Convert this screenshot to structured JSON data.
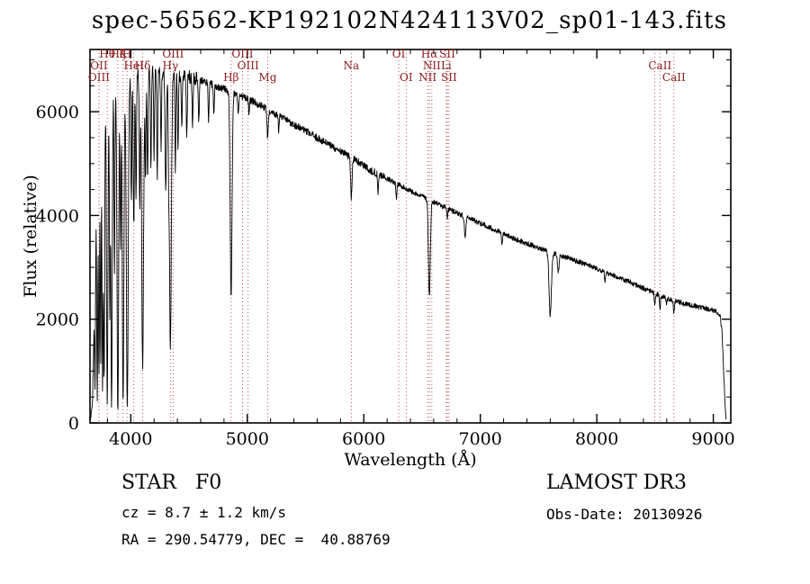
{
  "title": "spec-56562-KP192102N424113V02_sp01-143.fits",
  "chart_data": {
    "type": "line",
    "title": "spec-56562-KP192102N424113V02_sp01-143.fits",
    "xlabel": "Wavelength (Å)",
    "ylabel": "Flux (relative)",
    "xlim": [
      3650,
      9150
    ],
    "ylim": [
      0,
      7200
    ],
    "xticks": [
      4000,
      5000,
      6000,
      7000,
      8000,
      9000
    ],
    "yticks": [
      0,
      2000,
      4000,
      6000
    ],
    "x_minor_step": 200,
    "y_minor_step": 500,
    "line_color": "#000000",
    "spectral_line_color": "#aa4444",
    "spectral_label_color": "#8b1a1a",
    "continuum": [
      [
        3655,
        80
      ],
      [
        3672,
        400
      ],
      [
        3690,
        2600
      ],
      [
        3705,
        5200
      ],
      [
        3720,
        6100
      ],
      [
        3760,
        6400
      ],
      [
        3800,
        6500
      ],
      [
        3850,
        6550
      ],
      [
        3900,
        6600
      ],
      [
        3960,
        6650
      ],
      [
        4020,
        6700
      ],
      [
        4080,
        6720
      ],
      [
        4150,
        6750
      ],
      [
        4250,
        6780
      ],
      [
        4350,
        6730
      ],
      [
        4450,
        6700
      ],
      [
        4550,
        6650
      ],
      [
        4650,
        6570
      ],
      [
        4750,
        6480
      ],
      [
        4850,
        6400
      ],
      [
        4950,
        6300
      ],
      [
        5050,
        6200
      ],
      [
        5150,
        6080
      ],
      [
        5250,
        5950
      ],
      [
        5350,
        5820
      ],
      [
        5450,
        5690
      ],
      [
        5550,
        5560
      ],
      [
        5650,
        5430
      ],
      [
        5750,
        5300
      ],
      [
        5850,
        5170
      ],
      [
        5950,
        5040
      ],
      [
        6050,
        4880
      ],
      [
        6150,
        4770
      ],
      [
        6250,
        4650
      ],
      [
        6350,
        4530
      ],
      [
        6450,
        4420
      ],
      [
        6550,
        4310
      ],
      [
        6650,
        4200
      ],
      [
        6750,
        4100
      ],
      [
        6850,
        4000
      ],
      [
        6950,
        3900
      ],
      [
        7050,
        3800
      ],
      [
        7150,
        3700
      ],
      [
        7250,
        3600
      ],
      [
        7350,
        3500
      ],
      [
        7450,
        3420
      ],
      [
        7550,
        3340
      ],
      [
        7650,
        3260
      ],
      [
        7750,
        3180
      ],
      [
        7850,
        3100
      ],
      [
        7950,
        3020
      ],
      [
        8050,
        2930
      ],
      [
        8150,
        2840
      ],
      [
        8250,
        2750
      ],
      [
        8350,
        2650
      ],
      [
        8450,
        2550
      ],
      [
        8550,
        2450
      ],
      [
        8650,
        2370
      ],
      [
        8750,
        2300
      ],
      [
        8850,
        2250
      ],
      [
        8950,
        2200
      ],
      [
        9020,
        2150
      ],
      [
        9060,
        2050
      ],
      [
        9075,
        1750
      ],
      [
        9090,
        900
      ],
      [
        9102,
        300
      ],
      [
        9110,
        60
      ]
    ],
    "absorption_lines": [
      [
        3693,
        600,
        4
      ],
      [
        3712,
        400,
        5
      ],
      [
        3727,
        900,
        5
      ],
      [
        3742,
        1100,
        4
      ],
      [
        3758,
        600,
        5
      ],
      [
        3771,
        800,
        5
      ],
      [
        3798,
        350,
        6
      ],
      [
        3820,
        2200,
        4
      ],
      [
        3835,
        300,
        6
      ],
      [
        3860,
        2800,
        4
      ],
      [
        3889,
        200,
        7
      ],
      [
        3912,
        3300,
        4
      ],
      [
        3934,
        400,
        7
      ],
      [
        3970,
        300,
        8
      ],
      [
        4005,
        4300,
        4
      ],
      [
        4026,
        3900,
        5
      ],
      [
        4045,
        4400,
        4
      ],
      [
        4077,
        4100,
        4
      ],
      [
        4102,
        1100,
        8
      ],
      [
        4126,
        4700,
        4
      ],
      [
        4144,
        4600,
        4
      ],
      [
        4173,
        4900,
        4
      ],
      [
        4200,
        5100,
        4
      ],
      [
        4227,
        4700,
        4
      ],
      [
        4260,
        5200,
        4
      ],
      [
        4300,
        4600,
        6
      ],
      [
        4326,
        4900,
        4
      ],
      [
        4340,
        1400,
        8
      ],
      [
        4383,
        4900,
        4
      ],
      [
        4405,
        5300,
        4
      ],
      [
        4438,
        5600,
        4
      ],
      [
        4481,
        5500,
        4
      ],
      [
        4530,
        5700,
        4
      ],
      [
        4584,
        5800,
        4
      ],
      [
        4668,
        5800,
        4
      ],
      [
        4713,
        5900,
        4
      ],
      [
        4861,
        2450,
        8
      ],
      [
        4922,
        5900,
        4
      ],
      [
        5015,
        5950,
        4
      ],
      [
        5175,
        5500,
        6
      ],
      [
        5270,
        5650,
        4
      ],
      [
        5893,
        4350,
        6
      ],
      [
        6122,
        4450,
        4
      ],
      [
        6280,
        4350,
        4
      ],
      [
        6563,
        2450,
        8
      ],
      [
        6717,
        3950,
        4
      ],
      [
        6870,
        3600,
        6
      ],
      [
        7186,
        3450,
        4
      ],
      [
        7600,
        2080,
        10
      ],
      [
        7670,
        2900,
        7
      ],
      [
        8070,
        2750,
        4
      ],
      [
        8498,
        2320,
        5
      ],
      [
        8542,
        2220,
        5
      ],
      [
        8598,
        2320,
        4
      ],
      [
        8662,
        2120,
        5
      ],
      [
        8750,
        2280,
        4
      ]
    ],
    "noise_amplitude": {
      "blue": 140,
      "mid": 70,
      "red": 50
    },
    "spectral_lines": [
      {
        "label": "Hθ",
        "wavelength": 3798,
        "row": 0
      },
      {
        "label": "Hζ",
        "wavelength": 3889,
        "row": 0
      },
      {
        "label": "K",
        "wavelength": 3934,
        "row": 0
      },
      {
        "label": "H",
        "wavelength": 3968,
        "row": 0
      },
      {
        "label": "OIII",
        "wavelength": 4363,
        "row": 0
      },
      {
        "label": "OIII",
        "wavelength": 4959,
        "row": 0
      },
      {
        "label": "OI",
        "wavelength": 6300,
        "row": 0
      },
      {
        "label": "Hα",
        "wavelength": 6563,
        "row": 0
      },
      {
        "label": "SII",
        "wavelength": 6717,
        "row": 0
      },
      {
        "label": "OII",
        "wavelength": 3727,
        "row": 1
      },
      {
        "label": "HeI",
        "wavelength": 4026,
        "row": 1
      },
      {
        "label": "Hδ",
        "wavelength": 4102,
        "row": 1
      },
      {
        "label": "Hγ",
        "wavelength": 4340,
        "row": 1
      },
      {
        "label": "OIII",
        "wavelength": 5007,
        "row": 1
      },
      {
        "label": "Na",
        "wavelength": 5893,
        "row": 1
      },
      {
        "label": "NII",
        "wavelength": 6584,
        "row": 1
      },
      {
        "label": "Li",
        "wavelength": 6708,
        "row": 1
      },
      {
        "label": "",
        "wavelength": 8498,
        "row": 1
      },
      {
        "label": "CaII",
        "wavelength": 8542,
        "row": 1
      },
      {
        "label": "OIII",
        "wavelength": 3727,
        "row": 2
      },
      {
        "label": "Hβ",
        "wavelength": 4861,
        "row": 2
      },
      {
        "label": "Mg",
        "wavelength": 5175,
        "row": 2
      },
      {
        "label": "OI",
        "wavelength": 6364,
        "row": 2
      },
      {
        "label": "NII",
        "wavelength": 6548,
        "row": 2
      },
      {
        "label": "SII",
        "wavelength": 6731,
        "row": 2
      },
      {
        "label": "CaII",
        "wavelength": 8662,
        "row": 2
      }
    ]
  },
  "footer": {
    "left": {
      "classification": "STAR   F0",
      "cz": "cz = 8.7 ± 1.2 km/s",
      "radec": "RA = 290.54779, DEC =  40.88769"
    },
    "right": {
      "survey": "LAMOST DR3",
      "obs_date": "Obs-Date: 20130926"
    }
  }
}
